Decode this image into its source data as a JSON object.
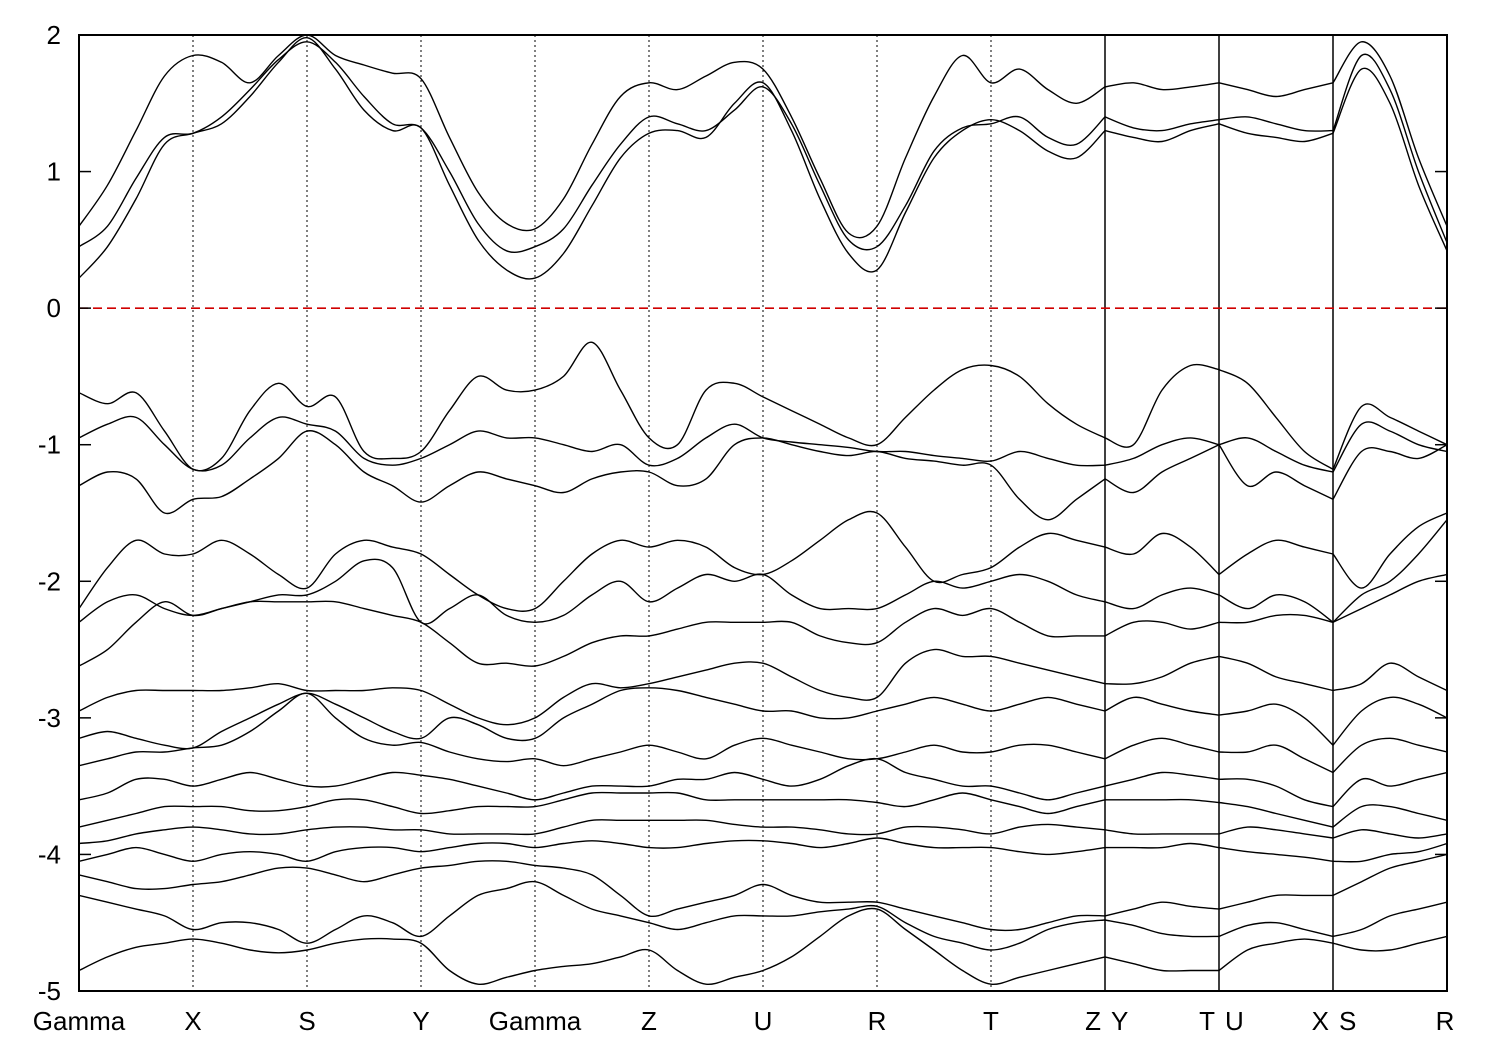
{
  "chart_data": {
    "type": "line",
    "title": "",
    "xlabel": "",
    "ylabel": "",
    "ylim": [
      -5,
      2
    ],
    "yticks": [
      -5,
      -4,
      -3,
      -2,
      -1,
      0,
      1,
      2
    ],
    "grid": "vertical dotted lines at k-path points",
    "reference_line": {
      "y": 0,
      "color": "#dd0000",
      "style": "dashed"
    },
    "kpath": {
      "labels": [
        "Gamma",
        "X",
        "S",
        "Y",
        "Gamma",
        "Z",
        "U",
        "R",
        "T",
        "Z",
        "Y",
        "T",
        "U",
        "X",
        "S",
        "R"
      ],
      "positions": [
        0.0,
        1.0,
        2.0,
        3.0,
        4.0,
        5.0,
        6.0,
        7.0,
        8.0,
        9.0,
        9.0,
        10.0,
        10.0,
        11.0,
        11.0,
        12.0
      ],
      "breaks": [
        9.0,
        10.0,
        11.0
      ]
    },
    "x": [
      0.0,
      0.25,
      0.5,
      0.75,
      1.0,
      1.25,
      1.5,
      1.75,
      2.0,
      2.25,
      2.5,
      2.75,
      3.0,
      3.25,
      3.5,
      3.75,
      4.0,
      4.25,
      4.5,
      4.75,
      5.0,
      5.25,
      5.5,
      5.75,
      6.0,
      6.25,
      6.5,
      6.75,
      7.0,
      7.25,
      7.5,
      7.75,
      8.0,
      8.25,
      8.5,
      8.75,
      9.0,
      9.25,
      9.5,
      9.75,
      10.0,
      10.25,
      10.5,
      10.75,
      11.0,
      11.25,
      11.5,
      11.75,
      12.0
    ],
    "series": [
      {
        "values": [
          0.22,
          0.45,
          0.8,
          1.2,
          1.28,
          1.35,
          1.55,
          1.8,
          1.98,
          1.75,
          1.45,
          1.3,
          1.32,
          0.9,
          0.5,
          0.28,
          0.22,
          0.4,
          0.75,
          1.1,
          1.28,
          1.3,
          1.25,
          1.5,
          1.65,
          1.3,
          0.8,
          0.4,
          0.28,
          0.7,
          1.1,
          1.3,
          1.38,
          1.3,
          1.15,
          1.1,
          1.3,
          1.25,
          1.22,
          1.3,
          1.35,
          1.28,
          1.25,
          1.22,
          1.28,
          1.75,
          1.5,
          0.9,
          0.42
        ]
      },
      {
        "values": [
          0.45,
          0.6,
          0.95,
          1.25,
          1.28,
          1.4,
          1.6,
          1.82,
          1.95,
          1.8,
          1.55,
          1.35,
          1.32,
          1.0,
          0.62,
          0.42,
          0.45,
          0.58,
          0.9,
          1.2,
          1.4,
          1.35,
          1.3,
          1.45,
          1.62,
          1.35,
          0.9,
          0.5,
          0.45,
          0.75,
          1.15,
          1.32,
          1.35,
          1.4,
          1.25,
          1.2,
          1.4,
          1.32,
          1.3,
          1.35,
          1.38,
          1.4,
          1.35,
          1.3,
          1.3,
          1.85,
          1.6,
          1.0,
          0.48
        ]
      },
      {
        "values": [
          0.6,
          0.9,
          1.3,
          1.7,
          1.85,
          1.8,
          1.65,
          1.85,
          2.0,
          1.85,
          1.78,
          1.72,
          1.68,
          1.25,
          0.85,
          0.62,
          0.58,
          0.8,
          1.2,
          1.55,
          1.65,
          1.6,
          1.7,
          1.8,
          1.75,
          1.4,
          0.95,
          0.55,
          0.6,
          1.1,
          1.55,
          1.85,
          1.65,
          1.75,
          1.6,
          1.5,
          1.62,
          1.65,
          1.6,
          1.62,
          1.65,
          1.6,
          1.55,
          1.6,
          1.65,
          1.95,
          1.7,
          1.1,
          0.6
        ]
      },
      {
        "values": [
          -0.62,
          -0.7,
          -0.62,
          -0.9,
          -1.18,
          -1.1,
          -0.75,
          -0.55,
          -0.72,
          -0.65,
          -1.05,
          -1.1,
          -1.05,
          -0.75,
          -0.5,
          -0.6,
          -0.6,
          -0.5,
          -0.25,
          -0.6,
          -0.95,
          -1.0,
          -0.6,
          -0.55,
          -0.65,
          -0.75,
          -0.85,
          -0.95,
          -1.0,
          -0.8,
          -0.6,
          -0.45,
          -0.42,
          -0.5,
          -0.7,
          -0.85,
          -0.95,
          -1.0,
          -0.6,
          -0.42,
          -0.45,
          -0.55,
          -0.8,
          -1.05,
          -1.18,
          -0.72,
          -0.8,
          -0.9,
          -1.0
        ]
      },
      {
        "values": [
          -0.95,
          -0.85,
          -0.8,
          -1.0,
          -1.18,
          -1.15,
          -0.95,
          -0.8,
          -0.85,
          -0.9,
          -1.1,
          -1.15,
          -1.1,
          -1.0,
          -0.9,
          -0.95,
          -0.95,
          -1.0,
          -1.05,
          -1.0,
          -1.15,
          -1.1,
          -0.95,
          -0.85,
          -0.95,
          -0.98,
          -1.0,
          -1.02,
          -1.05,
          -1.05,
          -1.08,
          -1.1,
          -1.12,
          -1.05,
          -1.1,
          -1.15,
          -1.15,
          -1.1,
          -1.0,
          -0.95,
          -1.0,
          -0.95,
          -1.05,
          -1.15,
          -1.2,
          -0.85,
          -0.9,
          -1.0,
          -1.05
        ]
      },
      {
        "values": [
          -1.3,
          -1.2,
          -1.25,
          -1.5,
          -1.4,
          -1.38,
          -1.25,
          -1.1,
          -0.9,
          -1.0,
          -1.2,
          -1.3,
          -1.42,
          -1.3,
          -1.2,
          -1.25,
          -1.3,
          -1.35,
          -1.25,
          -1.2,
          -1.2,
          -1.3,
          -1.25,
          -1.0,
          -0.95,
          -1.0,
          -1.05,
          -1.08,
          -1.05,
          -1.1,
          -1.12,
          -1.15,
          -1.15,
          -1.4,
          -1.55,
          -1.4,
          -1.25,
          -1.35,
          -1.2,
          -1.1,
          -1.0,
          -1.3,
          -1.2,
          -1.3,
          -1.4,
          -1.05,
          -1.05,
          -1.1,
          -1.0
        ]
      },
      {
        "values": [
          -2.2,
          -1.9,
          -1.7,
          -1.8,
          -1.8,
          -1.7,
          -1.8,
          -1.95,
          -2.05,
          -1.8,
          -1.7,
          -1.75,
          -1.8,
          -1.95,
          -2.1,
          -2.2,
          -2.2,
          -2.0,
          -1.8,
          -1.7,
          -1.75,
          -1.7,
          -1.75,
          -1.9,
          -1.95,
          -1.85,
          -1.7,
          -1.55,
          -1.5,
          -1.75,
          -2.0,
          -1.95,
          -1.9,
          -1.75,
          -1.65,
          -1.7,
          -1.75,
          -1.8,
          -1.65,
          -1.75,
          -1.95,
          -1.8,
          -1.7,
          -1.75,
          -1.8,
          -2.05,
          -1.8,
          -1.6,
          -1.5
        ]
      },
      {
        "values": [
          -2.3,
          -2.15,
          -2.1,
          -2.2,
          -2.25,
          -2.2,
          -2.15,
          -2.1,
          -2.1,
          -2.0,
          -1.85,
          -1.9,
          -2.3,
          -2.2,
          -2.1,
          -2.25,
          -2.3,
          -2.25,
          -2.1,
          -2.0,
          -2.15,
          -2.05,
          -1.95,
          -2.0,
          -1.95,
          -2.1,
          -2.2,
          -2.2,
          -2.2,
          -2.1,
          -2.0,
          -2.05,
          -2.0,
          -1.95,
          -2.0,
          -2.1,
          -2.15,
          -2.2,
          -2.1,
          -2.05,
          -2.1,
          -2.2,
          -2.1,
          -2.15,
          -2.3,
          -2.1,
          -2.0,
          -1.8,
          -1.55
        ]
      },
      {
        "values": [
          -2.62,
          -2.5,
          -2.3,
          -2.15,
          -2.25,
          -2.2,
          -2.15,
          -2.15,
          -2.15,
          -2.15,
          -2.2,
          -2.25,
          -2.3,
          -2.45,
          -2.6,
          -2.6,
          -2.62,
          -2.55,
          -2.45,
          -2.4,
          -2.4,
          -2.35,
          -2.3,
          -2.3,
          -2.3,
          -2.3,
          -2.4,
          -2.45,
          -2.45,
          -2.3,
          -2.2,
          -2.25,
          -2.2,
          -2.3,
          -2.4,
          -2.4,
          -2.4,
          -2.3,
          -2.3,
          -2.35,
          -2.3,
          -2.3,
          -2.25,
          -2.25,
          -2.3,
          -2.2,
          -2.1,
          -2.0,
          -1.95
        ]
      },
      {
        "values": [
          -2.95,
          -2.85,
          -2.8,
          -2.8,
          -2.8,
          -2.8,
          -2.78,
          -2.75,
          -2.8,
          -2.8,
          -2.8,
          -2.78,
          -2.8,
          -2.9,
          -3.0,
          -3.05,
          -3.0,
          -2.85,
          -2.75,
          -2.78,
          -2.75,
          -2.7,
          -2.65,
          -2.6,
          -2.6,
          -2.7,
          -2.8,
          -2.85,
          -2.85,
          -2.6,
          -2.5,
          -2.55,
          -2.55,
          -2.6,
          -2.65,
          -2.7,
          -2.75,
          -2.75,
          -2.7,
          -2.6,
          -2.55,
          -2.6,
          -2.7,
          -2.75,
          -2.8,
          -2.75,
          -2.6,
          -2.7,
          -2.8
        ]
      },
      {
        "values": [
          -3.15,
          -3.1,
          -3.15,
          -3.2,
          -3.22,
          -3.1,
          -3.0,
          -2.9,
          -2.82,
          -2.9,
          -3.0,
          -3.1,
          -3.15,
          -3.0,
          -3.05,
          -3.15,
          -3.15,
          -3.0,
          -2.9,
          -2.8,
          -2.78,
          -2.8,
          -2.85,
          -2.9,
          -2.95,
          -2.95,
          -3.0,
          -3.0,
          -2.95,
          -2.9,
          -2.85,
          -2.9,
          -2.95,
          -2.9,
          -2.85,
          -2.9,
          -2.95,
          -2.85,
          -2.9,
          -2.95,
          -2.98,
          -2.95,
          -2.9,
          -3.0,
          -3.2,
          -2.95,
          -2.85,
          -2.9,
          -3.0
        ]
      },
      {
        "values": [
          -3.35,
          -3.3,
          -3.25,
          -3.25,
          -3.22,
          -3.2,
          -3.1,
          -2.95,
          -2.82,
          -3.0,
          -3.15,
          -3.2,
          -3.18,
          -3.25,
          -3.3,
          -3.32,
          -3.3,
          -3.35,
          -3.3,
          -3.25,
          -3.2,
          -3.25,
          -3.3,
          -3.2,
          -3.15,
          -3.2,
          -3.25,
          -3.3,
          -3.3,
          -3.25,
          -3.2,
          -3.25,
          -3.25,
          -3.2,
          -3.2,
          -3.25,
          -3.3,
          -3.2,
          -3.15,
          -3.2,
          -3.25,
          -3.25,
          -3.2,
          -3.3,
          -3.4,
          -3.2,
          -3.15,
          -3.2,
          -3.25
        ]
      },
      {
        "values": [
          -3.6,
          -3.55,
          -3.45,
          -3.45,
          -3.5,
          -3.45,
          -3.4,
          -3.45,
          -3.5,
          -3.5,
          -3.45,
          -3.4,
          -3.42,
          -3.45,
          -3.5,
          -3.55,
          -3.6,
          -3.55,
          -3.5,
          -3.5,
          -3.5,
          -3.45,
          -3.45,
          -3.4,
          -3.45,
          -3.5,
          -3.45,
          -3.35,
          -3.3,
          -3.4,
          -3.45,
          -3.5,
          -3.5,
          -3.55,
          -3.6,
          -3.55,
          -3.5,
          -3.45,
          -3.4,
          -3.42,
          -3.45,
          -3.45,
          -3.5,
          -3.6,
          -3.65,
          -3.45,
          -3.5,
          -3.45,
          -3.4
        ]
      },
      {
        "values": [
          -3.8,
          -3.75,
          -3.7,
          -3.65,
          -3.65,
          -3.65,
          -3.68,
          -3.68,
          -3.65,
          -3.6,
          -3.6,
          -3.65,
          -3.7,
          -3.68,
          -3.65,
          -3.65,
          -3.65,
          -3.6,
          -3.55,
          -3.55,
          -3.55,
          -3.55,
          -3.6,
          -3.6,
          -3.6,
          -3.6,
          -3.6,
          -3.6,
          -3.62,
          -3.65,
          -3.6,
          -3.55,
          -3.6,
          -3.65,
          -3.7,
          -3.65,
          -3.6,
          -3.6,
          -3.6,
          -3.6,
          -3.62,
          -3.65,
          -3.7,
          -3.75,
          -3.8,
          -3.65,
          -3.65,
          -3.7,
          -3.75
        ]
      },
      {
        "values": [
          -3.92,
          -3.9,
          -3.85,
          -3.82,
          -3.8,
          -3.82,
          -3.85,
          -3.85,
          -3.82,
          -3.8,
          -3.8,
          -3.82,
          -3.82,
          -3.85,
          -3.85,
          -3.85,
          -3.85,
          -3.8,
          -3.75,
          -3.75,
          -3.75,
          -3.75,
          -3.75,
          -3.78,
          -3.8,
          -3.8,
          -3.82,
          -3.85,
          -3.85,
          -3.8,
          -3.8,
          -3.82,
          -3.85,
          -3.8,
          -3.78,
          -3.8,
          -3.82,
          -3.85,
          -3.85,
          -3.85,
          -3.85,
          -3.8,
          -3.82,
          -3.85,
          -3.88,
          -3.82,
          -3.85,
          -3.88,
          -3.85
        ]
      },
      {
        "values": [
          -4.05,
          -4.0,
          -3.95,
          -4.0,
          -4.05,
          -4.0,
          -3.98,
          -4.0,
          -4.05,
          -3.98,
          -3.95,
          -3.95,
          -3.98,
          -3.95,
          -3.92,
          -3.92,
          -3.95,
          -3.92,
          -3.9,
          -3.92,
          -3.95,
          -3.95,
          -3.92,
          -3.9,
          -3.9,
          -3.92,
          -3.95,
          -3.92,
          -3.88,
          -3.92,
          -3.95,
          -3.95,
          -3.95,
          -3.98,
          -4.0,
          -3.98,
          -3.95,
          -3.95,
          -3.95,
          -3.92,
          -3.95,
          -3.98,
          -4.0,
          -4.02,
          -4.05,
          -4.05,
          -4.0,
          -3.98,
          -3.92
        ]
      },
      {
        "values": [
          -4.15,
          -4.2,
          -4.25,
          -4.25,
          -4.22,
          -4.2,
          -4.15,
          -4.1,
          -4.1,
          -4.15,
          -4.2,
          -4.15,
          -4.1,
          -4.08,
          -4.05,
          -4.05,
          -4.08,
          -4.1,
          -4.15,
          -4.3,
          -4.45,
          -4.4,
          -4.35,
          -4.3,
          -4.22,
          -4.3,
          -4.35,
          -4.35,
          -4.35,
          -4.4,
          -4.45,
          -4.5,
          -4.55,
          -4.55,
          -4.5,
          -4.45,
          -4.45,
          -4.4,
          -4.35,
          -4.38,
          -4.4,
          -4.35,
          -4.3,
          -4.3,
          -4.3,
          -4.2,
          -4.1,
          -4.05,
          -4.0
        ]
      },
      {
        "values": [
          -4.3,
          -4.35,
          -4.4,
          -4.45,
          -4.55,
          -4.5,
          -4.5,
          -4.55,
          -4.65,
          -4.55,
          -4.45,
          -4.5,
          -4.6,
          -4.45,
          -4.3,
          -4.25,
          -4.2,
          -4.3,
          -4.4,
          -4.45,
          -4.5,
          -4.55,
          -4.5,
          -4.45,
          -4.45,
          -4.45,
          -4.42,
          -4.4,
          -4.38,
          -4.5,
          -4.6,
          -4.65,
          -4.7,
          -4.65,
          -4.55,
          -4.5,
          -4.48,
          -4.52,
          -4.58,
          -4.6,
          -4.6,
          -4.52,
          -4.5,
          -4.55,
          -4.6,
          -4.55,
          -4.45,
          -4.4,
          -4.35
        ]
      },
      {
        "values": [
          -4.85,
          -4.75,
          -4.68,
          -4.65,
          -4.62,
          -4.65,
          -4.7,
          -4.72,
          -4.7,
          -4.65,
          -4.62,
          -4.62,
          -4.65,
          -4.85,
          -4.95,
          -4.9,
          -4.85,
          -4.82,
          -4.8,
          -4.75,
          -4.7,
          -4.85,
          -4.95,
          -4.9,
          -4.85,
          -4.75,
          -4.6,
          -4.45,
          -4.4,
          -4.55,
          -4.7,
          -4.85,
          -4.95,
          -4.9,
          -4.85,
          -4.8,
          -4.75,
          -4.8,
          -4.85,
          -4.85,
          -4.85,
          -4.7,
          -4.65,
          -4.62,
          -4.65,
          -4.7,
          -4.7,
          -4.65,
          -4.6
        ]
      }
    ]
  }
}
